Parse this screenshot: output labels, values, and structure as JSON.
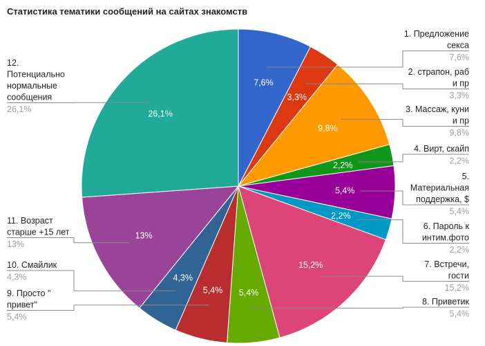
{
  "chart_data": {
    "type": "pie",
    "title": "Статистика тематики сообщений на сайтах знакомств",
    "slices": [
      {
        "label": "1. Предложение секса",
        "value": 7.6,
        "display": "7,6%",
        "color": "#3366cc"
      },
      {
        "label": "2. страпон, раб и пр",
        "value": 3.3,
        "display": "3,3%",
        "color": "#dc3912"
      },
      {
        "label": "3. Массаж, куни и пр",
        "value": 9.8,
        "display": "9,8%",
        "color": "#ff9900"
      },
      {
        "label": "4. Вирт, скайп",
        "value": 2.2,
        "display": "2,2%",
        "color": "#109618"
      },
      {
        "label": "5. Материальная поддержка, $",
        "value": 5.4,
        "display": "5,4%",
        "color": "#990099"
      },
      {
        "label": "6. Пароль к интим.фото",
        "value": 2.2,
        "display": "2,2%",
        "color": "#0099c6"
      },
      {
        "label": "7. Встречи, гости",
        "value": 15.2,
        "display": "15,2%",
        "color": "#dd4477"
      },
      {
        "label": "8. Приветик",
        "value": 5.4,
        "display": "5,4%",
        "color": "#66aa00"
      },
      {
        "label": "9. Просто \"привет\"",
        "value": 5.4,
        "display": "5,4%",
        "color": "#b82e2e"
      },
      {
        "label": "10. Смайлик",
        "value": 4.3,
        "display": "4,3%",
        "color": "#316395"
      },
      {
        "label": "11. Возраст старше +15 лет",
        "value": 13,
        "display": "13%",
        "color": "#994499"
      },
      {
        "label": "12. Потенциально нормальные сообщения",
        "value": 26.1,
        "display": "26,1%",
        "color": "#22aa99"
      }
    ]
  },
  "legend": [
    {
      "lines": [
        "1. Предложение",
        "секса"
      ],
      "pct": "7,6%"
    },
    {
      "lines": [
        "2. страпон, раб",
        "и пр"
      ],
      "pct": "3,3%"
    },
    {
      "lines": [
        "3. Массаж, куни",
        "и пр"
      ],
      "pct": "9,8%"
    },
    {
      "lines": [
        "4. Вирт, скайп"
      ],
      "pct": "2,2%"
    },
    {
      "lines": [
        "5.",
        "Материальная",
        "поддержка, $"
      ],
      "pct": "5,4%"
    },
    {
      "lines": [
        "6. Пароль к",
        "интим.фото"
      ],
      "pct": "2,2%"
    },
    {
      "lines": [
        "7. Встречи,",
        "гости"
      ],
      "pct": "15,2%"
    },
    {
      "lines": [
        "8. Приветик"
      ],
      "pct": "5,4%"
    },
    {
      "lines": [
        "9. Просто \"",
        "привет\""
      ],
      "pct": "5,4%"
    },
    {
      "lines": [
        "10. Смайлик"
      ],
      "pct": "4,3%"
    },
    {
      "lines": [
        "11. Возраст",
        "старше +15 лет"
      ],
      "pct": "13%"
    },
    {
      "lines": [
        "12.",
        "Потенциально",
        "нормальные",
        "сообщения"
      ],
      "pct": "26,1%"
    }
  ]
}
